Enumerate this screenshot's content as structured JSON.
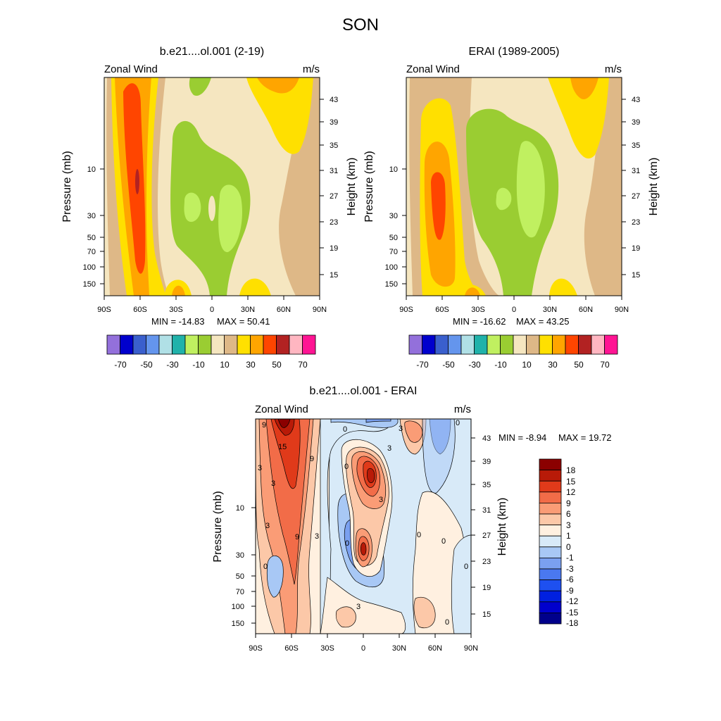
{
  "figure": {
    "title": "SON"
  },
  "fill_colors": [
    "#9370db",
    "#0000cd",
    "#3a5fcd",
    "#6495ed",
    "#b0e0e6",
    "#20b2aa",
    "#c0f060",
    "#9acd32",
    "#f5e6c0",
    "#deb887",
    "#ffe000",
    "#ffa500",
    "#ff4500",
    "#b22222",
    "#ffb6c1",
    "#ff1493"
  ],
  "diff_colors": [
    "#00008b",
    "#0000cd",
    "#0020e0",
    "#1e50f0",
    "#4a78f0",
    "#7aa0f0",
    "#a8c8f5",
    "#d8eaf8",
    "#fff0e0",
    "#fcc8a8",
    "#fa9c76",
    "#f26c48",
    "#e03a1a",
    "#b81a08",
    "#8b0000"
  ],
  "chart_data": [
    {
      "id": "model",
      "type": "heatmap",
      "title": "b.e21....ol.001 (2-19)",
      "variable": "Zonal Wind",
      "units": "m/s",
      "xlabel": "",
      "ylabel": "Pressure (mb)",
      "y2label": "Height (km)",
      "x_ticks": [
        "90S",
        "60S",
        "30S",
        "0",
        "30N",
        "60N",
        "90N"
      ],
      "y_ticks": [
        "10",
        "30",
        "50",
        "70",
        "100",
        "150"
      ],
      "y2_ticks": [
        "43",
        "39",
        "35",
        "31",
        "27",
        "23",
        "19",
        "15"
      ],
      "min_label": "MIN = -14.83",
      "max_label": "MAX =  50.41",
      "colorbar_labels": [
        "-70",
        "-50",
        "-30",
        "-10",
        "10",
        "30",
        "50",
        "70"
      ]
    },
    {
      "id": "obs",
      "type": "heatmap",
      "title": "ERAI (1989-2005)",
      "variable": "Zonal Wind",
      "units": "m/s",
      "xlabel": "",
      "ylabel": "Pressure (mb)",
      "y2label": "Height (km)",
      "x_ticks": [
        "90S",
        "60S",
        "30S",
        "0",
        "30N",
        "60N",
        "90N"
      ],
      "y_ticks": [
        "10",
        "30",
        "50",
        "70",
        "100",
        "150"
      ],
      "y2_ticks": [
        "43",
        "39",
        "35",
        "31",
        "27",
        "23",
        "19",
        "15"
      ],
      "min_label": "MIN = -16.62",
      "max_label": "MAX =  43.25",
      "colorbar_labels": [
        "-70",
        "-50",
        "-30",
        "-10",
        "10",
        "30",
        "50",
        "70"
      ]
    },
    {
      "id": "diff",
      "type": "heatmap",
      "title": "b.e21....ol.001 - ERAI",
      "variable": "Zonal Wind",
      "units": "m/s",
      "xlabel": "",
      "ylabel": "Pressure (mb)",
      "y2label": "Height (km)",
      "x_ticks": [
        "90S",
        "60S",
        "30S",
        "0",
        "30N",
        "60N",
        "90N"
      ],
      "y_ticks": [
        "10",
        "30",
        "50",
        "70",
        "100",
        "150"
      ],
      "y2_ticks": [
        "43",
        "39",
        "35",
        "31",
        "27",
        "23",
        "19",
        "15"
      ],
      "min_label": "MIN =  -8.94",
      "max_label": "MAX =  19.72",
      "colorbar_labels": [
        "18",
        "15",
        "12",
        "9",
        "6",
        "3",
        "1",
        "0",
        "-1",
        "-3",
        "-6",
        "-9",
        "-12",
        "-15",
        "-18"
      ],
      "contour_labels": [
        "9",
        "15",
        "3",
        "3",
        "9",
        "3",
        "0",
        "3",
        "0",
        "0",
        "3",
        "3",
        "9",
        "0",
        "3",
        "0",
        "3",
        "0",
        "0",
        "0",
        "0"
      ]
    }
  ]
}
